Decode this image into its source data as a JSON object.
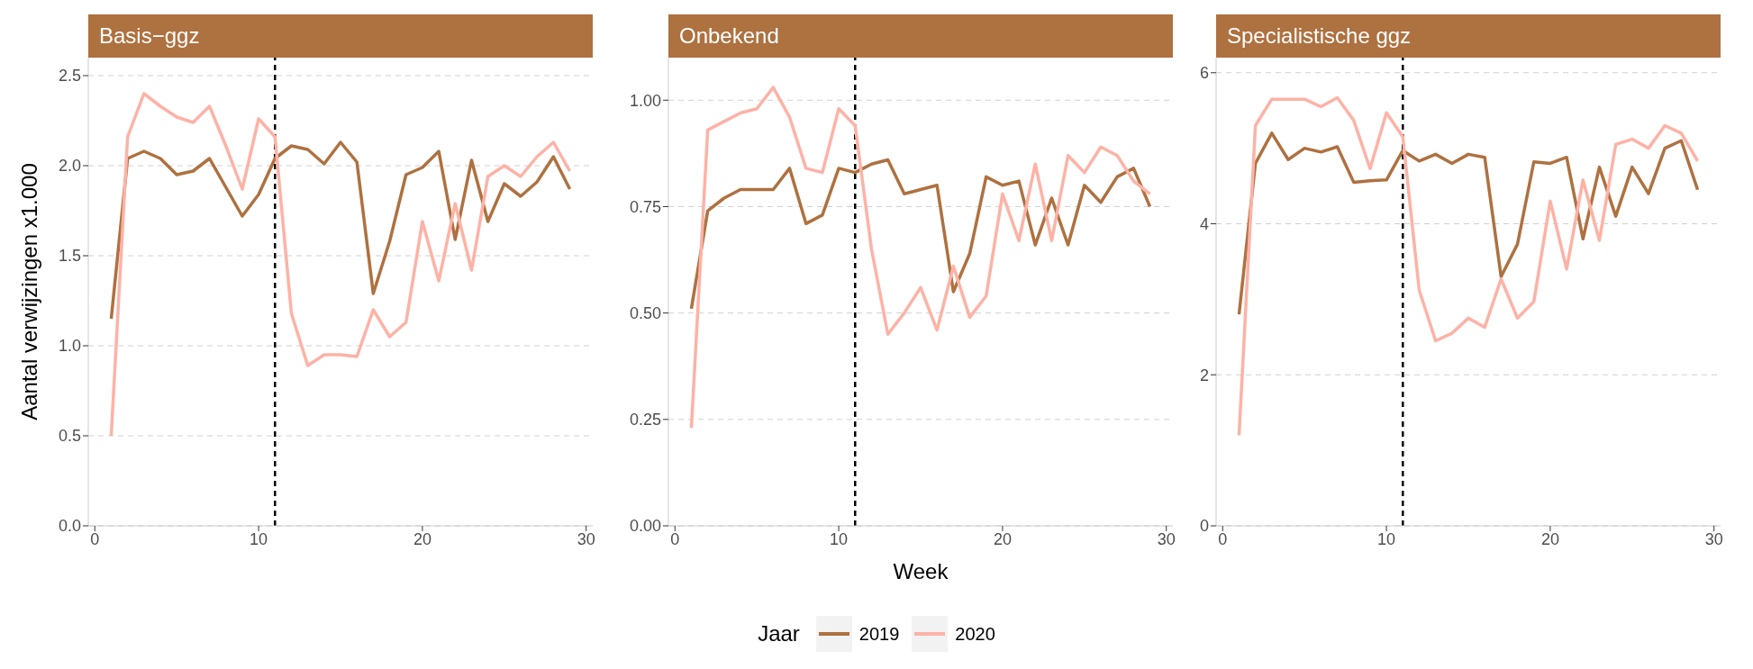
{
  "chart_data": [
    {
      "type": "line",
      "title": "Basis−ggz",
      "ylabel": "Aantal verwijzingen x1.000",
      "legend": "bottom",
      "legend_title": "Jaar",
      "x": [
        1,
        2,
        3,
        4,
        5,
        6,
        7,
        8,
        9,
        10,
        11,
        12,
        13,
        14,
        15,
        16,
        17,
        18,
        19,
        20,
        21,
        22,
        23,
        24,
        25,
        26,
        27,
        28,
        29
      ],
      "xlim": [
        -0.4,
        30.4
      ],
      "xticks": [
        0,
        10,
        20,
        30
      ],
      "ylim": [
        0,
        2.6
      ],
      "yticks": [
        {
          "value": 0,
          "label": "0.0"
        },
        {
          "value": 0.5,
          "label": "0.5"
        },
        {
          "value": 1,
          "label": "1.0"
        },
        {
          "value": 1.5,
          "label": "1.5"
        },
        {
          "value": 2,
          "label": "2.0"
        },
        {
          "value": 2.5,
          "label": "2.5"
        }
      ],
      "grid": "y",
      "line_style": "solid",
      "marker": "none",
      "ref_lines": [
        {
          "axis": "x",
          "value": 11,
          "color": "#000000",
          "line_style": "dashed"
        }
      ],
      "series": [
        {
          "name": "2019",
          "color": "#ae7140",
          "values": [
            1.15,
            2.04,
            2.08,
            2.04,
            1.95,
            1.97,
            2.04,
            1.88,
            1.72,
            1.84,
            2.04,
            2.11,
            2.09,
            2.01,
            2.13,
            2.02,
            1.29,
            1.58,
            1.95,
            1.99,
            2.08,
            1.59,
            2.03,
            1.69,
            1.9,
            1.83,
            1.91,
            2.05,
            1.87
          ]
        },
        {
          "name": "2020",
          "color": "#fdb2a6",
          "values": [
            0.5,
            2.16,
            2.4,
            2.33,
            2.27,
            2.24,
            2.33,
            2.11,
            1.87,
            2.26,
            2.16,
            1.18,
            0.89,
            0.95,
            0.95,
            0.94,
            1.2,
            1.05,
            1.13,
            1.69,
            1.36,
            1.79,
            1.42,
            1.94,
            2.0,
            1.94,
            2.05,
            2.13,
            1.97
          ]
        }
      ]
    },
    {
      "type": "line",
      "title": "Onbekend",
      "xlabel": "Week",
      "x": [
        1,
        2,
        3,
        4,
        5,
        6,
        7,
        8,
        9,
        10,
        11,
        12,
        13,
        14,
        15,
        16,
        17,
        18,
        19,
        20,
        21,
        22,
        23,
        24,
        25,
        26,
        27,
        28,
        29
      ],
      "xlim": [
        -0.4,
        30.4
      ],
      "xticks": [
        0,
        10,
        20,
        30
      ],
      "ylim": [
        0,
        1.1
      ],
      "yticks": [
        {
          "value": 0,
          "label": "0.00"
        },
        {
          "value": 0.25,
          "label": "0.25"
        },
        {
          "value": 0.5,
          "label": "0.50"
        },
        {
          "value": 0.75,
          "label": "0.75"
        },
        {
          "value": 1,
          "label": "1.00"
        }
      ],
      "grid": "y",
      "line_style": "solid",
      "marker": "none",
      "ref_lines": [
        {
          "axis": "x",
          "value": 11,
          "color": "#000000",
          "line_style": "dashed"
        }
      ],
      "series": [
        {
          "name": "2019",
          "color": "#ae7140",
          "values": [
            0.51,
            0.74,
            0.77,
            0.79,
            0.79,
            0.79,
            0.84,
            0.71,
            0.73,
            0.84,
            0.83,
            0.85,
            0.86,
            0.78,
            0.79,
            0.8,
            0.55,
            0.64,
            0.82,
            0.8,
            0.81,
            0.66,
            0.77,
            0.66,
            0.8,
            0.76,
            0.82,
            0.84,
            0.75
          ]
        },
        {
          "name": "2020",
          "color": "#fdb2a6",
          "values": [
            0.23,
            0.93,
            0.95,
            0.97,
            0.98,
            1.03,
            0.96,
            0.84,
            0.83,
            0.98,
            0.94,
            0.65,
            0.45,
            0.5,
            0.56,
            0.46,
            0.61,
            0.49,
            0.54,
            0.78,
            0.67,
            0.85,
            0.67,
            0.87,
            0.83,
            0.89,
            0.87,
            0.81,
            0.78
          ]
        }
      ]
    },
    {
      "type": "line",
      "title": "Specialistische ggz",
      "x": [
        1,
        2,
        3,
        4,
        5,
        6,
        7,
        8,
        9,
        10,
        11,
        12,
        13,
        14,
        15,
        16,
        17,
        18,
        19,
        20,
        21,
        22,
        23,
        24,
        25,
        26,
        27,
        28,
        29
      ],
      "xlim": [
        -0.4,
        30.4
      ],
      "xticks": [
        0,
        10,
        20,
        30
      ],
      "ylim": [
        0,
        6.2
      ],
      "yticks": [
        0,
        2,
        4,
        6
      ],
      "grid": "y",
      "line_style": "solid",
      "marker": "none",
      "ref_lines": [
        {
          "axis": "x",
          "value": 11,
          "color": "#000000",
          "line_style": "dashed"
        }
      ],
      "series": [
        {
          "name": "2019",
          "color": "#ae7140",
          "values": [
            2.8,
            4.8,
            5.2,
            4.85,
            5.0,
            4.95,
            5.02,
            4.55,
            4.57,
            4.58,
            4.97,
            4.83,
            4.92,
            4.8,
            4.92,
            4.88,
            3.3,
            3.73,
            4.82,
            4.8,
            4.88,
            3.8,
            4.75,
            4.1,
            4.75,
            4.4,
            5.0,
            5.1,
            4.45
          ]
        },
        {
          "name": "2020",
          "color": "#fdb2a6",
          "values": [
            1.2,
            5.3,
            5.65,
            5.65,
            5.65,
            5.55,
            5.67,
            5.37,
            4.73,
            5.47,
            5.15,
            3.12,
            2.45,
            2.55,
            2.75,
            2.63,
            3.27,
            2.75,
            2.97,
            4.3,
            3.4,
            4.58,
            3.78,
            5.05,
            5.12,
            5.0,
            5.3,
            5.2,
            4.83
          ]
        }
      ]
    }
  ]
}
